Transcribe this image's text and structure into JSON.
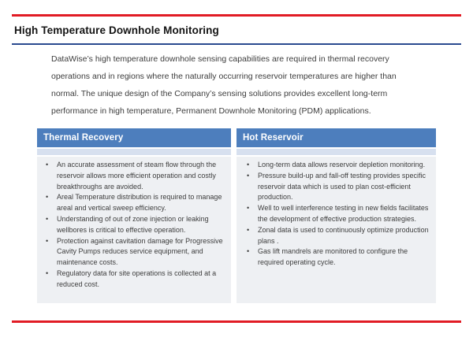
{
  "slide": {
    "title": "High Temperature Downhole Monitoring",
    "intro_lines": [
      "DataWise’s high temperature downhole sensing capabilities are required in thermal recovery",
      "operations and in regions where the naturally occurring reservoir temperatures are higher than",
      "normal.  The unique  design of the Company’s sensing solutions provides excellent long-term",
      "performance in high temperature, Permanent Downhole Monitoring (PDM) applications."
    ]
  },
  "table": {
    "columns": [
      {
        "header": "Thermal Recovery",
        "bullets": [
          "An accurate assessment of steam flow through the reservoir allows more efficient operation and costly breakthroughs are avoided.",
          "Areal Temperature distribution is required to manage areal and vertical sweep efficiency.",
          "Understanding of out of zone injection or leaking wellbores is critical to effective operation.",
          "Protection against cavitation damage for Progressive Cavity Pumps reduces service equipment, and maintenance costs.",
          "Regulatory data for site operations is collected at a reduced cost."
        ]
      },
      {
        "header": "Hot Reservoir",
        "bullets": [
          "Long-term data allows reservoir depletion monitoring.",
          "Pressure build-up and fall-off testing provides specific reservoir data which is used to plan cost-efficient production.",
          "Well to well interference testing in new fields facilitates the development of effective production strategies.",
          "Zonal  data is used to continuously optimize production plans .",
          "Gas lift mandrels are monitored to configure the required operating cycle."
        ]
      }
    ]
  },
  "colors": {
    "accent_red": "#e11b24",
    "accent_navy": "#2a4a8f",
    "header_blue": "#4d7ebd",
    "band_blue": "#d7e0ef",
    "body_gray": "#eef0f3",
    "text_dark": "#3d3d3d"
  }
}
